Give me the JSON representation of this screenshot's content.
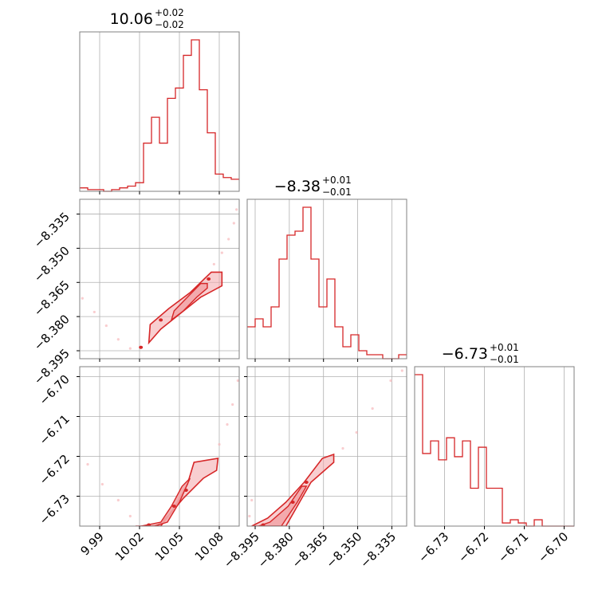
{
  "chart_data": {
    "type": "corner",
    "color": "#d62728",
    "fill_color": "#f2a6a9",
    "grid": true,
    "parameters": [
      {
        "median": "10.06",
        "plus": "+0.02",
        "minus": "−0.02",
        "range": [
          9.975,
          10.095
        ],
        "ticks": [
          {
            "value": 9.99,
            "label": "9.99"
          },
          {
            "value": 10.02,
            "label": "10.02"
          },
          {
            "value": 10.05,
            "label": "10.05"
          },
          {
            "value": 10.08,
            "label": "10.08"
          }
        ]
      },
      {
        "median": "−8.38",
        "plus": "+0.01",
        "minus": "−0.01",
        "range": [
          -8.3985,
          -8.3285
        ],
        "ticks": [
          {
            "value": -8.395,
            "label": "−8.395"
          },
          {
            "value": -8.38,
            "label": "−8.380"
          },
          {
            "value": -8.365,
            "label": "−8.365"
          },
          {
            "value": -8.35,
            "label": "−8.350"
          },
          {
            "value": -8.335,
            "label": "−8.335"
          }
        ]
      },
      {
        "median": "−6.73",
        "plus": "+0.01",
        "minus": "−0.01",
        "range": [
          -6.7375,
          -6.6975
        ],
        "ticks": [
          {
            "value": -6.73,
            "label": "−6.73"
          },
          {
            "value": -6.72,
            "label": "−6.72"
          },
          {
            "value": -6.71,
            "label": "−6.71"
          },
          {
            "value": -6.7,
            "label": "−6.70"
          }
        ]
      }
    ],
    "histograms": [
      {
        "edges": [
          9.975,
          9.981,
          9.987,
          9.993,
          9.999,
          10.005,
          10.011,
          10.017,
          10.023,
          10.029,
          10.035,
          10.041,
          10.047,
          10.053,
          10.059,
          10.065,
          10.071,
          10.077,
          10.083,
          10.089,
          10.095
        ],
        "counts": [
          2,
          1,
          1,
          0,
          1,
          2,
          3,
          5,
          28,
          43,
          28,
          54,
          60,
          79,
          88,
          59,
          34,
          10,
          8,
          7
        ]
      },
      {
        "edges": [
          -8.3985,
          -8.395,
          -8.3915,
          -8.388,
          -8.3845,
          -8.381,
          -8.3775,
          -8.374,
          -8.3705,
          -8.367,
          -8.3635,
          -8.36,
          -8.3565,
          -8.353,
          -8.3495,
          -8.346,
          -8.3425,
          -8.339,
          -8.3355,
          -8.332,
          -8.3285
        ],
        "counts": [
          8,
          10,
          8,
          13,
          25,
          31,
          32,
          38,
          25,
          13,
          20,
          8,
          3,
          6,
          2,
          1,
          1,
          0,
          0,
          1
        ]
      },
      {
        "edges": [
          -6.7375,
          -6.7355,
          -6.7335,
          -6.7315,
          -6.7295,
          -6.7275,
          -6.7255,
          -6.7235,
          -6.7215,
          -6.7195,
          -6.7175,
          -6.7155,
          -6.7135,
          -6.7115,
          -6.7095,
          -6.7075,
          -6.7055,
          -6.7035,
          -6.7015,
          -6.6995,
          -6.6975
        ],
        "counts": [
          48,
          23,
          27,
          21,
          28,
          22,
          27,
          12,
          25,
          12,
          12,
          1,
          2,
          1,
          0,
          2,
          0,
          0,
          0,
          0
        ]
      }
    ],
    "pairs": [
      {
        "x": 0,
        "y": 1,
        "outer": [
          [
            10.027,
            -8.3915
          ],
          [
            10.036,
            -8.3855
          ],
          [
            10.051,
            -8.3785
          ],
          [
            10.066,
            -8.3715
          ],
          [
            10.082,
            -8.3665
          ],
          [
            10.082,
            -8.3605
          ],
          [
            10.074,
            -8.3605
          ],
          [
            10.058,
            -8.3695
          ],
          [
            10.042,
            -8.3765
          ],
          [
            10.028,
            -8.3835
          ]
        ],
        "inner": [
          [
            10.044,
            -8.3815
          ],
          [
            10.053,
            -8.3775
          ],
          [
            10.063,
            -8.3715
          ],
          [
            10.071,
            -8.3675
          ],
          [
            10.071,
            -8.3655
          ],
          [
            10.066,
            -8.3655
          ],
          [
            10.056,
            -8.3715
          ],
          [
            10.046,
            -8.3775
          ]
        ],
        "blobs": [
          [
            10.036,
            -8.3815
          ],
          [
            10.021,
            -8.3935
          ],
          [
            10.072,
            -8.3635
          ]
        ],
        "tail": [
          [
            9.977,
            -8.372
          ],
          [
            9.986,
            -8.378
          ],
          [
            9.995,
            -8.384
          ],
          [
            10.004,
            -8.39
          ],
          [
            10.013,
            -8.394
          ],
          [
            10.076,
            -8.357
          ],
          [
            10.082,
            -8.352
          ],
          [
            10.087,
            -8.346
          ],
          [
            10.091,
            -8.339
          ],
          [
            10.093,
            -8.333
          ]
        ]
      },
      {
        "x": 0,
        "y": 2,
        "outer": [
          [
            10.017,
            -6.7375
          ],
          [
            10.036,
            -6.7375
          ],
          [
            10.046,
            -6.733
          ],
          [
            10.056,
            -6.727
          ],
          [
            10.061,
            -6.7215
          ],
          [
            10.079,
            -6.7205
          ],
          [
            10.078,
            -6.7235
          ],
          [
            10.068,
            -6.7255
          ],
          [
            10.053,
            -6.7305
          ],
          [
            10.043,
            -6.7345
          ],
          [
            10.033,
            -6.7375
          ]
        ],
        "inner": [
          [
            10.021,
            -6.7375
          ],
          [
            10.031,
            -6.7375
          ],
          [
            10.041,
            -6.7365
          ],
          [
            10.05,
            -6.7315
          ],
          [
            10.058,
            -6.7255
          ],
          [
            10.052,
            -6.7275
          ],
          [
            10.044,
            -6.7325
          ],
          [
            10.036,
            -6.7365
          ]
        ],
        "blobs": [
          [
            10.055,
            -6.7285
          ],
          [
            10.046,
            -6.7325
          ],
          [
            10.027,
            -6.7372
          ]
        ],
        "tail": [
          [
            9.981,
            -6.722
          ],
          [
            9.992,
            -6.727
          ],
          [
            10.004,
            -6.731
          ],
          [
            10.013,
            -6.735
          ],
          [
            10.08,
            -6.717
          ],
          [
            10.086,
            -6.712
          ],
          [
            10.09,
            -6.707
          ],
          [
            10.094,
            -6.701
          ]
        ]
      },
      {
        "x": 1,
        "y": 2,
        "outer": [
          [
            -8.3955,
            -6.7375
          ],
          [
            -8.3815,
            -6.7375
          ],
          [
            -8.3745,
            -6.7305
          ],
          [
            -8.3705,
            -6.7265
          ],
          [
            -8.3605,
            -6.7215
          ],
          [
            -8.3605,
            -6.7195
          ],
          [
            -8.3655,
            -6.7205
          ],
          [
            -8.3735,
            -6.7265
          ],
          [
            -8.3815,
            -6.7315
          ],
          [
            -8.3895,
            -6.7355
          ],
          [
            -8.3965,
            -6.7375
          ]
        ],
        "inner": [
          [
            -8.3935,
            -6.7375
          ],
          [
            -8.3835,
            -6.7375
          ],
          [
            -8.3765,
            -6.7315
          ],
          [
            -8.3725,
            -6.7275
          ],
          [
            -8.3745,
            -6.7275
          ],
          [
            -8.3805,
            -6.7325
          ],
          [
            -8.3885,
            -6.7365
          ]
        ],
        "blobs": [
          [
            -8.3725,
            -6.7265
          ],
          [
            -8.3785,
            -6.7315
          ],
          [
            -8.3915,
            -6.7372
          ]
        ],
        "tail": [
          [
            -8.3975,
            -6.735
          ],
          [
            -8.3965,
            -6.731
          ],
          [
            -8.3565,
            -6.718
          ],
          [
            -8.3505,
            -6.714
          ],
          [
            -8.3435,
            -6.708
          ],
          [
            -8.3355,
            -6.701
          ],
          [
            -8.3305,
            -6.6985
          ]
        ]
      }
    ]
  }
}
